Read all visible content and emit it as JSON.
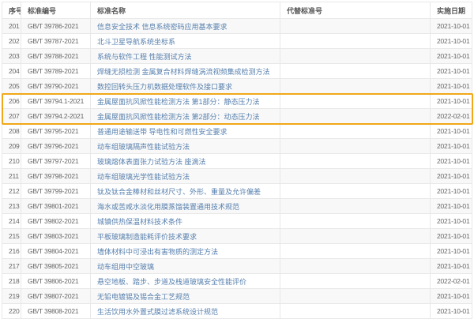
{
  "accent": {
    "highlight_border_color": "#f0a818",
    "link_color": "#567fad",
    "stripe_color": "#f8f8f8",
    "grid_border_color": "#e8e8e8"
  },
  "table": {
    "columns": [
      "序号",
      "标准编号",
      "标准名称",
      "代替标准号",
      "实施日期"
    ],
    "rows": [
      {
        "no": "201",
        "code": "GB/T 39786-2021",
        "name": "信息安全技术 信息系统密码应用基本要求",
        "replaced": "",
        "date": "2021-10-01",
        "highlighted": false
      },
      {
        "no": "202",
        "code": "GB/T 39787-2021",
        "name": "北斗卫星导航系统坐标系",
        "replaced": "",
        "date": "2021-10-01",
        "highlighted": false
      },
      {
        "no": "203",
        "code": "GB/T 39788-2021",
        "name": "系统与软件工程 性能测试方法",
        "replaced": "",
        "date": "2021-10-01",
        "highlighted": false
      },
      {
        "no": "204",
        "code": "GB/T 39789-2021",
        "name": "焊缝无损检测 金属复合材料焊缝涡流视频集成检测方法",
        "replaced": "",
        "date": "2021-10-01",
        "highlighted": false
      },
      {
        "no": "205",
        "code": "GB/T 39790-2021",
        "name": "数控回转头压力机数据处理软件及接口要求",
        "replaced": "",
        "date": "2021-10-01",
        "highlighted": false
      },
      {
        "no": "206",
        "code": "GB/T 39794.1-2021",
        "name": "金属屋面抗风掀性能检测方法 第1部分：静态压力法",
        "replaced": "",
        "date": "2021-10-01",
        "highlighted": true
      },
      {
        "no": "207",
        "code": "GB/T 39794.2-2021",
        "name": "金属屋面抗风掀性能检测方法 第2部分：动态压力法",
        "replaced": "",
        "date": "2022-02-01",
        "highlighted": true
      },
      {
        "no": "208",
        "code": "GB/T 39795-2021",
        "name": "普通用途输送带 导电性和可燃性安全要求",
        "replaced": "",
        "date": "2021-10-01",
        "highlighted": false
      },
      {
        "no": "209",
        "code": "GB/T 39796-2021",
        "name": "动车组玻璃隔声性能试验方法",
        "replaced": "",
        "date": "2021-10-01",
        "highlighted": false
      },
      {
        "no": "210",
        "code": "GB/T 39797-2021",
        "name": "玻璃熔体表面张力试验方法 座滴法",
        "replaced": "",
        "date": "2021-10-01",
        "highlighted": false
      },
      {
        "no": "211",
        "code": "GB/T 39798-2021",
        "name": "动车组玻璃光学性能试验方法",
        "replaced": "",
        "date": "2021-10-01",
        "highlighted": false
      },
      {
        "no": "212",
        "code": "GB/T 39799-2021",
        "name": "钛及钛合金棒材和丝材尺寸、外形、重量及允许偏差",
        "replaced": "",
        "date": "2021-10-01",
        "highlighted": false
      },
      {
        "no": "213",
        "code": "GB/T 39801-2021",
        "name": "海水或苦咸水淡化用膜蒸馏装置通用技术规范",
        "replaced": "",
        "date": "2021-10-01",
        "highlighted": false
      },
      {
        "no": "214",
        "code": "GB/T 39802-2021",
        "name": "城镇供热保温材料技术条件",
        "replaced": "",
        "date": "2021-10-01",
        "highlighted": false
      },
      {
        "no": "215",
        "code": "GB/T 39803-2021",
        "name": "平板玻璃制造能耗评价技术要求",
        "replaced": "",
        "date": "2021-10-01",
        "highlighted": false
      },
      {
        "no": "216",
        "code": "GB/T 39804-2021",
        "name": "墙体材料中可浸出有害物质的测定方法",
        "replaced": "",
        "date": "2021-10-01",
        "highlighted": false
      },
      {
        "no": "217",
        "code": "GB/T 39805-2021",
        "name": "动车组用中空玻璃",
        "replaced": "",
        "date": "2021-10-01",
        "highlighted": false
      },
      {
        "no": "218",
        "code": "GB/T 39806-2021",
        "name": "悬空地板、踏步、步道及栈道玻璃安全性能评价",
        "replaced": "",
        "date": "2022-02-01",
        "highlighted": false
      },
      {
        "no": "219",
        "code": "GB/T 39807-2021",
        "name": "无铅电镀锡及锡合金工艺规范",
        "replaced": "",
        "date": "2021-10-01",
        "highlighted": false
      },
      {
        "no": "220",
        "code": "GB/T 39808-2021",
        "name": "生活饮用水外置式膜过滤系统设计规范",
        "replaced": "",
        "date": "2021-10-01",
        "highlighted": false
      }
    ]
  }
}
